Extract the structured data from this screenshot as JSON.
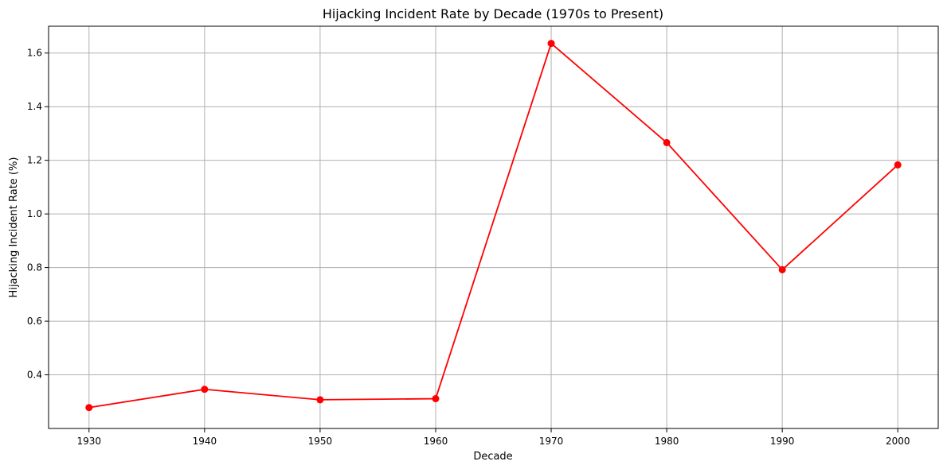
{
  "chart_data": {
    "type": "line",
    "title": "Hijacking Incident Rate by Decade (1970s to Present)",
    "xlabel": "Decade",
    "ylabel": "Hijacking Incident Rate (%)",
    "x": [
      1930,
      1940,
      1950,
      1960,
      1970,
      1980,
      1990,
      2000
    ],
    "x_tick_labels": [
      "1930",
      "1940",
      "1950",
      "1960",
      "1970",
      "1980",
      "1990",
      "2000"
    ],
    "series": [
      {
        "values": [
          0.278,
          0.346,
          0.307,
          0.311,
          1.636,
          1.266,
          0.792,
          1.183
        ],
        "color": "#ff0000",
        "marker": "circle"
      }
    ],
    "y_ticks": [
      0.4,
      0.6,
      0.8,
      1.0,
      1.2,
      1.4,
      1.6
    ],
    "y_tick_labels": [
      "0.4",
      "0.6",
      "0.8",
      "1.0",
      "1.2",
      "1.4",
      "1.6"
    ],
    "xlim": [
      1926.5,
      2003.5
    ],
    "ylim": [
      0.2,
      1.7
    ],
    "grid": true,
    "grid_color": "#b0b0b0"
  }
}
